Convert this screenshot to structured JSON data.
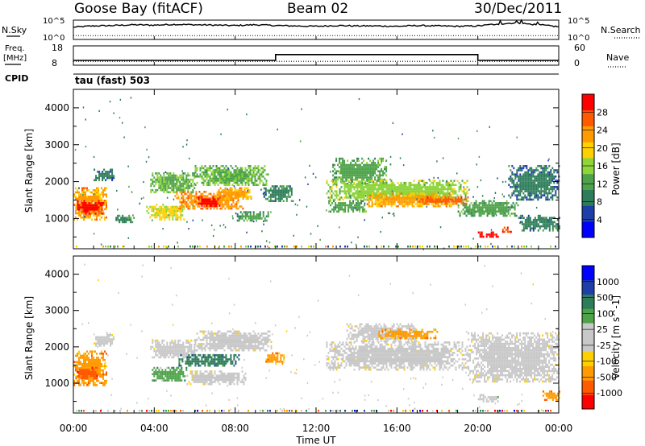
{
  "header": {
    "station": "Goose Bay (fitACF)",
    "beam": "Beam 02",
    "date": "30/Dec/2011"
  },
  "top_panels": {
    "nsky_label": "N.Sky",
    "nsearch_label": "N.Search",
    "nsky_ticks": [
      "10^5",
      "10^0"
    ],
    "nsearch_ticks": [
      "10^5",
      "10^0"
    ],
    "freq_label_line1": "Freq.",
    "freq_label_line2": "[MHz]",
    "freq_ticks": [
      "18",
      "8"
    ],
    "nave_label": "Nave",
    "nave_ticks": [
      "60",
      "0"
    ],
    "cpid_label": "CPID",
    "cpid_value": "tau (fast) 503"
  },
  "colors": {
    "power": [
      "#0000ff",
      "#1f3fa8",
      "#2e7d5a",
      "#4ea24a",
      "#8ed43a",
      "#ffd000",
      "#ff9a00",
      "#ff5a00",
      "#ff0000"
    ],
    "velocity": [
      "#ff0000",
      "#ff5a00",
      "#ff9a00",
      "#ffd000",
      "#c8c8c8",
      "#c8c8c8",
      "#4ea24a",
      "#2e7d5a",
      "#1f3fa8",
      "#0000ff"
    ],
    "ground_scatter": "#c8c8c8"
  },
  "chart_data": [
    {
      "type": "line",
      "name": "nsky-nsearch",
      "x": [
        "00:00",
        "01:00",
        "02:00",
        "03:00",
        "04:00",
        "05:00",
        "06:00",
        "07:00",
        "08:00",
        "09:00",
        "10:00",
        "11:00",
        "12:00",
        "13:00",
        "14:00",
        "15:00",
        "16:00",
        "17:00",
        "18:00",
        "19:00",
        "20:00",
        "21:00",
        "22:00",
        "23:00",
        "24:00"
      ],
      "series": [
        {
          "name": "N.Sky",
          "values": [
            3.2,
            3.5,
            3.6,
            3.8,
            3.7,
            3.9,
            3.8,
            3.7,
            3.6,
            3.8,
            3.6,
            3.5,
            3.4,
            3.6,
            3.5,
            3.5,
            3.4,
            3.6,
            3.5,
            3.4,
            3.5,
            4.0,
            4.2,
            3.8,
            3.3
          ]
        },
        {
          "name": "N.Search",
          "values": [
            1.0,
            1.0,
            1.0,
            1.0,
            1.0,
            1.0,
            1.0,
            1.0,
            1.0,
            1.0,
            1.0,
            1.0,
            1.0,
            1.0,
            1.0,
            1.0,
            1.0,
            1.0,
            1.0,
            1.0,
            1.0,
            1.0,
            1.0,
            1.0,
            1.0
          ]
        }
      ],
      "ylim": [
        0,
        5
      ]
    },
    {
      "type": "line",
      "name": "freq-nave",
      "series": [
        {
          "name": "Freq.",
          "points": [
            [
              0,
              10.5
            ],
            [
              10,
              10.5
            ],
            [
              10,
              13.5
            ],
            [
              20,
              13.5
            ],
            [
              20,
              10.5
            ],
            [
              24,
              10.5
            ]
          ]
        },
        {
          "name": "Nave",
          "points": [
            [
              0,
              12
            ],
            [
              24,
              12
            ]
          ]
        }
      ],
      "ylim_freq": [
        8,
        18
      ],
      "ylim_nave": [
        0,
        60
      ]
    },
    {
      "type": "heatmap",
      "name": "power",
      "xlabel": "",
      "ylabel": "Slant Range [km]",
      "xlim": [
        0,
        24
      ],
      "ylim": [
        180,
        4500
      ],
      "yticks": [
        1000,
        2000,
        3000,
        4000
      ],
      "colorbar_label": "Power [dB]",
      "colorbar_ticks": [
        "28",
        "24",
        "20",
        "16",
        "12",
        "8",
        "4"
      ],
      "crange": [
        0,
        32
      ],
      "regions": [
        {
          "t0": 0.0,
          "t1": 1.6,
          "r0": 950,
          "r1": 1850,
          "v": 22
        },
        {
          "t0": 0.1,
          "t1": 1.5,
          "r0": 1150,
          "r1": 1500,
          "v": 29
        },
        {
          "t0": 1.0,
          "t1": 2.0,
          "r0": 2050,
          "r1": 2350,
          "v": 8
        },
        {
          "t0": 2.0,
          "t1": 3.0,
          "r0": 880,
          "r1": 1100,
          "v": 10
        },
        {
          "t0": 3.8,
          "t1": 6.0,
          "r0": 1700,
          "r1": 2250,
          "v": 14
        },
        {
          "t0": 3.6,
          "t1": 5.5,
          "r0": 1000,
          "r1": 1400,
          "v": 18
        },
        {
          "t0": 5.0,
          "t1": 8.4,
          "r0": 1250,
          "r1": 1750,
          "v": 24
        },
        {
          "t0": 6.0,
          "t1": 7.2,
          "r0": 1350,
          "r1": 1600,
          "v": 30
        },
        {
          "t0": 6.0,
          "t1": 9.6,
          "r0": 1900,
          "r1": 2450,
          "v": 14
        },
        {
          "t0": 7.0,
          "t1": 8.8,
          "r0": 1550,
          "r1": 1850,
          "v": 22
        },
        {
          "t0": 8.0,
          "t1": 9.6,
          "r0": 950,
          "r1": 1200,
          "v": 12
        },
        {
          "t0": 9.4,
          "t1": 10.8,
          "r0": 1500,
          "r1": 1900,
          "v": 10
        },
        {
          "t0": 12.8,
          "t1": 15.5,
          "r0": 1950,
          "r1": 2650,
          "v": 13
        },
        {
          "t0": 12.5,
          "t1": 19.5,
          "r0": 1500,
          "r1": 2050,
          "v": 16
        },
        {
          "t0": 14.5,
          "t1": 18.8,
          "r0": 1350,
          "r1": 1700,
          "v": 22
        },
        {
          "t0": 17.0,
          "t1": 19.5,
          "r0": 1400,
          "r1": 1600,
          "v": 26
        },
        {
          "t0": 12.6,
          "t1": 14.5,
          "r0": 1200,
          "r1": 1500,
          "v": 12
        },
        {
          "t0": 19.0,
          "t1": 22.0,
          "r0": 1100,
          "r1": 1500,
          "v": 12
        },
        {
          "t0": 20.0,
          "t1": 21.0,
          "r0": 480,
          "r1": 650,
          "v": 30
        },
        {
          "t0": 21.2,
          "t1": 21.7,
          "r0": 620,
          "r1": 780,
          "v": 28
        },
        {
          "t0": 21.5,
          "t1": 24.0,
          "r0": 1500,
          "r1": 2450,
          "v": 8
        },
        {
          "t0": 22.0,
          "t1": 24.0,
          "r0": 700,
          "r1": 1100,
          "v": 9
        }
      ]
    },
    {
      "type": "heatmap",
      "name": "velocity",
      "xlabel": "Time UT",
      "ylabel": "Slant Range [km]",
      "xticks": [
        "00:00",
        "04:00",
        "08:00",
        "12:00",
        "16:00",
        "20:00",
        "00:00"
      ],
      "xlim": [
        0,
        24
      ],
      "ylim": [
        180,
        4500
      ],
      "yticks": [
        1000,
        2000,
        3000,
        4000
      ],
      "colorbar_label": "Velocity [m s^-1]",
      "colorbar_ticks": [
        "1000",
        "500",
        "100",
        "25",
        "-25",
        "-100",
        "-500",
        "-1000"
      ],
      "regions": [
        {
          "t0": 0.0,
          "t1": 1.6,
          "r0": 950,
          "r1": 1900,
          "v": 2
        },
        {
          "t0": 0.1,
          "t1": 1.2,
          "r0": 1150,
          "r1": 1450,
          "v": 1
        },
        {
          "t0": 1.0,
          "t1": 2.0,
          "r0": 2050,
          "r1": 2350,
          "v": 4
        },
        {
          "t0": 3.8,
          "t1": 6.0,
          "r0": 1700,
          "r1": 2200,
          "v": 4
        },
        {
          "t0": 3.8,
          "t1": 5.6,
          "r0": 1050,
          "r1": 1450,
          "v": 6
        },
        {
          "t0": 5.6,
          "t1": 8.5,
          "r0": 1000,
          "r1": 1350,
          "v": 4
        },
        {
          "t0": 5.2,
          "t1": 8.2,
          "r0": 1500,
          "r1": 1800,
          "v": 7
        },
        {
          "t0": 6.0,
          "t1": 9.8,
          "r0": 1900,
          "r1": 2450,
          "v": 4
        },
        {
          "t0": 9.5,
          "t1": 10.4,
          "r0": 1550,
          "r1": 1850,
          "v": 2
        },
        {
          "t0": 12.5,
          "t1": 19.5,
          "r0": 1400,
          "r1": 2150,
          "v": 4
        },
        {
          "t0": 13.5,
          "t1": 17.0,
          "r0": 2150,
          "r1": 2650,
          "v": 4
        },
        {
          "t0": 15.0,
          "t1": 18.0,
          "r0": 2250,
          "r1": 2500,
          "v": 2
        },
        {
          "t0": 19.5,
          "t1": 24.0,
          "r0": 1050,
          "r1": 2400,
          "v": 4
        },
        {
          "t0": 20.0,
          "t1": 21.0,
          "r0": 500,
          "r1": 700,
          "v": 5
        },
        {
          "t0": 23.2,
          "t1": 24.0,
          "r0": 550,
          "r1": 800,
          "v": 2
        }
      ]
    }
  ]
}
